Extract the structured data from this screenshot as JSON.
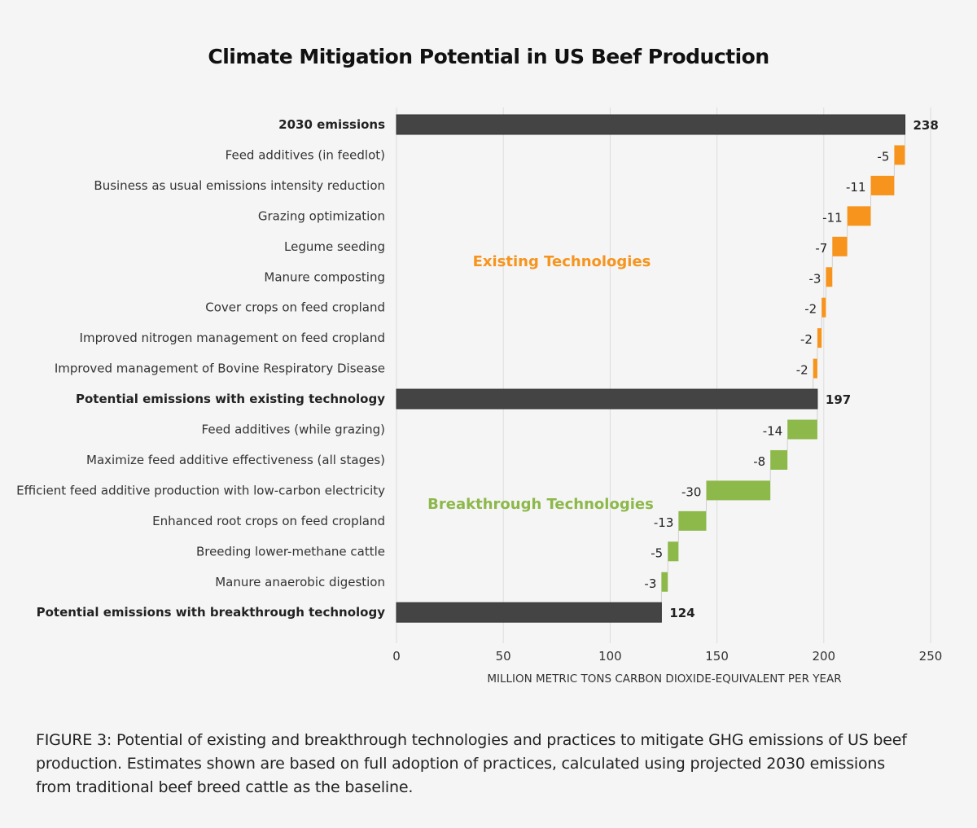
{
  "chart_data": {
    "type": "bar",
    "subtype": "waterfall",
    "orientation": "horizontal",
    "title": "Climate Mitigation Potential in US Beef Production",
    "xlabel": "MILLION METRIC TONS CARBON DIOXIDE-EQUIVALENT PER YEAR",
    "ylabel": "",
    "xlim": [
      0,
      250
    ],
    "xticks": [
      0,
      50,
      100,
      150,
      200,
      250
    ],
    "grid": true,
    "legend": "none",
    "colors": {
      "total": "#444444",
      "existing": "#f7941d",
      "breakthrough": "#8db84a"
    },
    "bars": [
      {
        "category": "2030 emissions",
        "kind": "total",
        "value": 238,
        "label": "238"
      },
      {
        "category": "Feed additives (in feedlot)",
        "kind": "existing",
        "value": -5,
        "label": "-5"
      },
      {
        "category": "Business as usual emissions intensity reduction",
        "kind": "existing",
        "value": -11,
        "label": "-11"
      },
      {
        "category": "Grazing optimization",
        "kind": "existing",
        "value": -11,
        "label": "-11"
      },
      {
        "category": "Legume seeding",
        "kind": "existing",
        "value": -7,
        "label": "-7"
      },
      {
        "category": "Manure composting",
        "kind": "existing",
        "value": -3,
        "label": "-3"
      },
      {
        "category": "Cover crops on feed cropland",
        "kind": "existing",
        "value": -2,
        "label": "-2"
      },
      {
        "category": "Improved nitrogen management on feed cropland",
        "kind": "existing",
        "value": -2,
        "label": "-2"
      },
      {
        "category": "Improved management of Bovine Respiratory Disease",
        "kind": "existing",
        "value": -2,
        "label": "-2"
      },
      {
        "category": "Potential emissions with existing technology",
        "kind": "total",
        "value": 197,
        "label": "197"
      },
      {
        "category": "Feed additives (while grazing)",
        "kind": "breakthrough",
        "value": -14,
        "label": "-14"
      },
      {
        "category": "Maximize feed additive effectiveness (all stages)",
        "kind": "breakthrough",
        "value": -8,
        "label": "-8"
      },
      {
        "category": "Efficient feed additive production with low-carbon electricity",
        "kind": "breakthrough",
        "value": -30,
        "label": "-30"
      },
      {
        "category": "Enhanced root crops on feed cropland",
        "kind": "breakthrough",
        "value": -13,
        "label": "-13"
      },
      {
        "category": "Breeding lower-methane cattle",
        "kind": "breakthrough",
        "value": -5,
        "label": "-5"
      },
      {
        "category": "Manure anaerobic digestion",
        "kind": "breakthrough",
        "value": -3,
        "label": "-3"
      },
      {
        "category": "Potential emissions with breakthrough technology",
        "kind": "total",
        "value": 124,
        "label": "124"
      }
    ],
    "annotations": [
      {
        "text": "Existing Technologies",
        "kind": "existing",
        "near_category": "Manure composting"
      },
      {
        "text": "Breakthrough Technologies",
        "kind": "breakthrough",
        "near_category": "Efficient feed additive production with low-carbon electricity"
      }
    ]
  },
  "caption": "FIGURE 3: Potential of existing and breakthrough technologies and practices to mitigate GHG emissions of US beef production. Estimates shown are based on full adoption of practices, calculated using projected 2030 emissions from traditional beef breed cattle as the baseline."
}
